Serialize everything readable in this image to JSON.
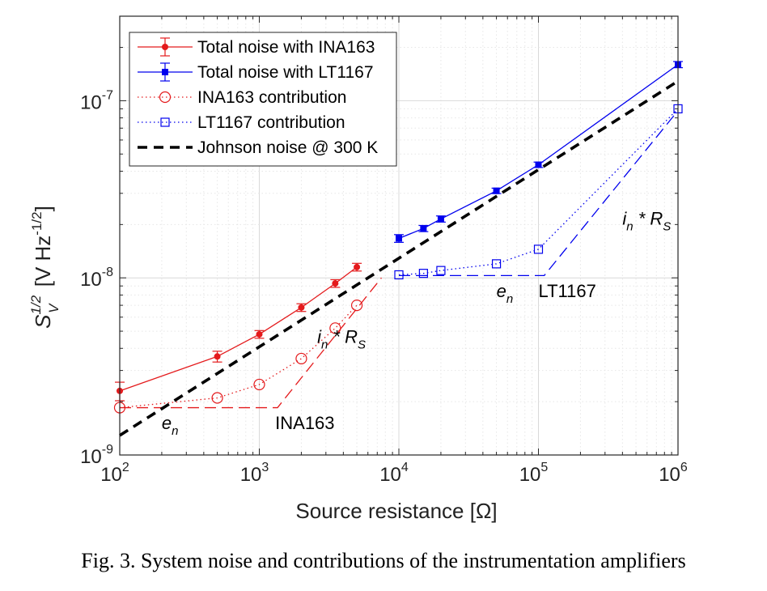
{
  "caption": "Fig. 3.  System noise and contributions of the instrumentation amplifiers",
  "chart_data": {
    "type": "line",
    "xscale": "log",
    "yscale": "log",
    "xlim": [
      100,
      1000000
    ],
    "ylim": [
      1e-09,
      3e-07
    ],
    "grid": "on",
    "xlabel": "Source resistance [Ω]",
    "ylabel": {
      "base": "S",
      "sup": "1/2",
      "sub": "V",
      "unit_open": " [V Hz",
      "unit_sup": "-1/2",
      "unit_close": "]"
    },
    "x_ticks": [
      {
        "base": "10",
        "exp": "2"
      },
      {
        "base": "10",
        "exp": "3"
      },
      {
        "base": "10",
        "exp": "4"
      },
      {
        "base": "10",
        "exp": "5"
      },
      {
        "base": "10",
        "exp": "6"
      }
    ],
    "y_ticks": [
      {
        "value": 1e-09,
        "base": "10",
        "exp": "-9"
      },
      {
        "value": 1e-08,
        "base": "10",
        "exp": "-8"
      },
      {
        "value": 1e-07,
        "base": "10",
        "exp": "-7"
      }
    ],
    "legend_position": "top-left",
    "series": [
      {
        "name": "Total noise with INA163",
        "color": "#e41a1c",
        "line": "solid",
        "marker": "dot",
        "errorbars": true,
        "x": [
          100,
          500,
          1000,
          2000,
          3500,
          5000
        ],
        "y": [
          2.3e-09,
          3.6e-09,
          4.8e-09,
          6.8e-09,
          9.3e-09,
          1.15e-08
        ],
        "err": [
          0.12,
          0.07,
          0.05,
          0.05,
          0.05,
          0.05
        ]
      },
      {
        "name": "Total noise with LT1167",
        "color": "#0000ee",
        "line": "solid",
        "marker": "filled-square",
        "errorbars": true,
        "x": [
          10000,
          15000,
          20000,
          50000,
          100000,
          1000000
        ],
        "y": [
          1.67e-08,
          1.9e-08,
          2.15e-08,
          3.1e-08,
          4.35e-08,
          1.6e-07
        ],
        "err": [
          0.05,
          0.04,
          0.04,
          0.035,
          0.035,
          0.04
        ]
      },
      {
        "name": "INA163 contribution",
        "color": "#e41a1c",
        "line": "dotted",
        "marker": "open-circle",
        "x": [
          100,
          500,
          1000,
          2000,
          3500,
          5000
        ],
        "y": [
          1.85e-09,
          2.1e-09,
          2.5e-09,
          3.5e-09,
          5.2e-09,
          7e-09
        ]
      },
      {
        "name": "LT1167 contribution",
        "color": "#0000ee",
        "line": "dotted",
        "marker": "open-square",
        "x": [
          10000,
          15000,
          20000,
          50000,
          100000,
          1000000
        ],
        "y": [
          1.04e-08,
          1.06e-08,
          1.1e-08,
          1.2e-08,
          1.45e-08,
          9e-08
        ]
      },
      {
        "name": "Johnson noise @ 300 K",
        "color": "#000000",
        "line": "dashed-thick",
        "marker": "none",
        "x": [
          100,
          1000000
        ],
        "y": [
          1.29e-09,
          1.29e-07
        ]
      }
    ],
    "asymptotes": [
      {
        "color": "#e41a1c",
        "x": [
          100,
          1350,
          7500
        ],
        "y": [
          1.85e-09,
          1.85e-09,
          1e-08
        ]
      },
      {
        "color": "#0000ee",
        "x": [
          10000,
          110000,
          1000000
        ],
        "y": [
          1.03e-08,
          1.03e-08,
          8.8e-08
        ]
      }
    ],
    "annotations": [
      {
        "id": "en-ina",
        "base": "e",
        "sub": "n",
        "suffix": "",
        "x": 200,
        "y": 1.4e-09
      },
      {
        "id": "ina-label",
        "text": "INA163",
        "x": 1300,
        "y": 1.4e-09
      },
      {
        "id": "in-rs-ina",
        "base": "i",
        "sub": "n",
        "suffix": " * R",
        "suffix_sub": "S",
        "x": 2600,
        "y": 4.3e-09
      },
      {
        "id": "en-lt",
        "base": "e",
        "sub": "n",
        "suffix": "",
        "x": 50000,
        "y": 7.8e-09
      },
      {
        "id": "lt-label",
        "text": "LT1167",
        "x": 100000,
        "y": 7.8e-09
      },
      {
        "id": "in-rs-lt",
        "base": "i",
        "sub": "n",
        "suffix": " * R",
        "suffix_sub": "S",
        "x": 400000,
        "y": 2e-08
      }
    ]
  }
}
